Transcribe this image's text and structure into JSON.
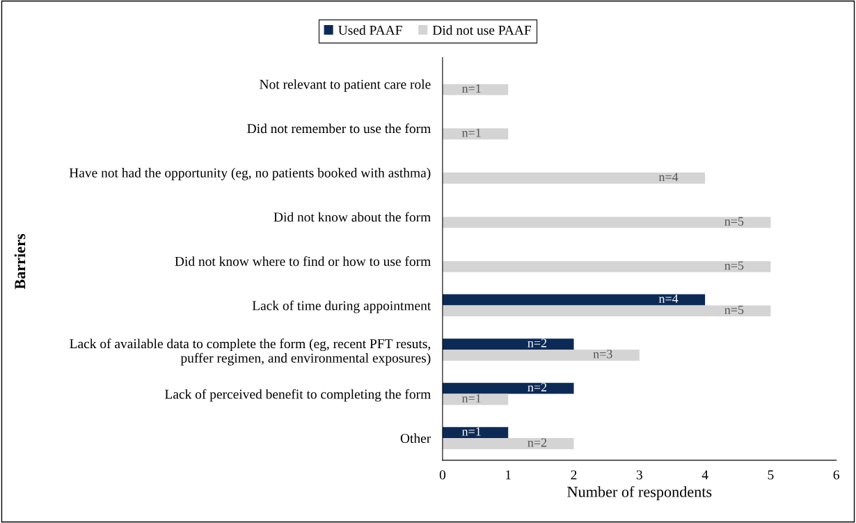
{
  "chart_data": {
    "type": "bar",
    "orientation": "horizontal",
    "xlabel": "Number of respondents",
    "ylabel": "Barriers",
    "categories": [
      "Not relevant to patient care role",
      "Did not remember to use the form",
      "Have not had the opportunity (eg, no patients booked with asthma)",
      "Did not know about the form",
      "Did not know where to find or how to use form",
      "Lack of time during appointment",
      "Lack of available data to complete the form (eg, recent PFT resuts,\npuffer regimen, and environmental exposures)",
      "Lack of perceived benefit to completing the form",
      "Other"
    ],
    "series": [
      {
        "name": "Used PAAF",
        "color": "#0c2a56",
        "values": [
          null,
          null,
          null,
          null,
          null,
          4,
          2,
          2,
          1
        ],
        "value_labels": [
          null,
          null,
          null,
          null,
          null,
          "n=4",
          "n=2",
          "n=2",
          "n=1"
        ]
      },
      {
        "name": "Did not use PAAF",
        "color": "#d4d4d4",
        "values": [
          1,
          1,
          4,
          5,
          5,
          5,
          3,
          1,
          2
        ],
        "value_labels": [
          "n=1",
          "n=1",
          "n=4",
          "n=5",
          "n=5",
          "n=5",
          "n=3",
          "n=1",
          "n=2"
        ]
      }
    ],
    "xlim": [
      0,
      6
    ],
    "xticks": [
      0,
      1,
      2,
      3,
      4,
      5,
      6
    ],
    "grid": false,
    "legend": "top"
  }
}
